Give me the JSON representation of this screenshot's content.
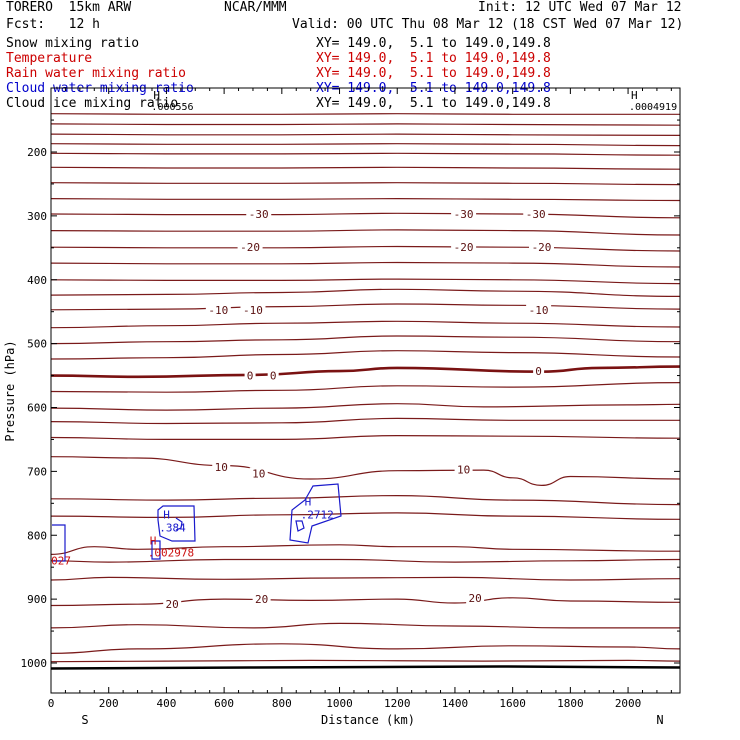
{
  "header": {
    "model": "TORERO  15km ARW",
    "org": "NCAR/MMM",
    "init": "Init: 12 UTC Wed 07 Mar 12",
    "fcst": "Fcst:   12 h",
    "valid": "Valid: 00 UTC Thu 08 Mar 12 (18 CST Wed 07 Mar 12)"
  },
  "fields": [
    {
      "name": "Snow mixing ratio",
      "xy": "XY= 149.0,  5.1 to 149.0,149.8",
      "color": "#000000"
    },
    {
      "name": "Temperature",
      "xy": "XY= 149.0,  5.1 to 149.0,149.8",
      "color": "#cc0000"
    },
    {
      "name": "Rain water mixing ratio",
      "xy": "XY= 149.0,  5.1 to 149.0,149.8",
      "color": "#cc0000"
    },
    {
      "name": "Cloud water mixing ratio",
      "xy": "XY= 149.0,  5.1 to 149.0,149.8",
      "color": "#0000cc"
    },
    {
      "name": "Cloud ice mixing ratio",
      "xy": "XY= 149.0,  5.1 to 149.0,149.8",
      "color": "#000000"
    }
  ],
  "colors": {
    "temperature": "#7a1a1a",
    "freezing": "#7a1212",
    "cloud_water": "#1a1acc",
    "rain": "#cc1111",
    "ground": "#000000"
  },
  "chart_data": {
    "type": "line",
    "xlabel": "Distance (km)",
    "ylabel": "Pressure (hPa)",
    "xlim": [
      0,
      2180
    ],
    "ylim": [
      1050,
      130
    ],
    "x_ticks": [
      0,
      200,
      400,
      600,
      800,
      1000,
      1200,
      1400,
      1600,
      1800,
      2000
    ],
    "y_ticks": [
      200,
      300,
      400,
      500,
      600,
      700,
      800,
      900,
      1000
    ],
    "x_end_labels": {
      "left": "S",
      "right": "N"
    },
    "isotherms": [
      {
        "p": [
          [
            0,
            140
          ],
          [
            400,
            141
          ],
          [
            800,
            141
          ],
          [
            1200,
            140
          ],
          [
            1600,
            141
          ],
          [
            2180,
            141
          ]
        ]
      },
      {
        "p": [
          [
            0,
            156
          ],
          [
            400,
            157
          ],
          [
            800,
            157
          ],
          [
            1200,
            156
          ],
          [
            1600,
            157
          ],
          [
            2180,
            158
          ]
        ]
      },
      {
        "p": [
          [
            0,
            172
          ],
          [
            400,
            173
          ],
          [
            800,
            173
          ],
          [
            1200,
            172
          ],
          [
            1600,
            173
          ],
          [
            2180,
            174
          ]
        ]
      },
      {
        "p": [
          [
            0,
            187
          ],
          [
            400,
            188
          ],
          [
            800,
            188
          ],
          [
            1200,
            187
          ],
          [
            1600,
            188
          ],
          [
            2180,
            190
          ]
        ]
      },
      {
        "p": [
          [
            0,
            202
          ],
          [
            400,
            203
          ],
          [
            800,
            203
          ],
          [
            1200,
            202
          ],
          [
            1600,
            203
          ],
          [
            2180,
            205
          ]
        ]
      },
      {
        "p": [
          [
            0,
            224
          ],
          [
            400,
            225
          ],
          [
            800,
            225
          ],
          [
            1200,
            224
          ],
          [
            1600,
            225
          ],
          [
            2180,
            227
          ]
        ]
      },
      {
        "p": [
          [
            0,
            248
          ],
          [
            400,
            249
          ],
          [
            800,
            249
          ],
          [
            1200,
            248
          ],
          [
            1600,
            249
          ],
          [
            2180,
            251
          ]
        ]
      },
      {
        "p": [
          [
            0,
            273
          ],
          [
            400,
            274
          ],
          [
            800,
            274
          ],
          [
            1200,
            273
          ],
          [
            1600,
            274
          ],
          [
            2180,
            276
          ]
        ]
      },
      {
        "p": [
          [
            0,
            297
          ],
          [
            400,
            298
          ],
          [
            800,
            298
          ],
          [
            1200,
            296
          ],
          [
            1600,
            297
          ],
          [
            2180,
            303
          ]
        ],
        "label": "-30"
      },
      {
        "p": [
          [
            0,
            323
          ],
          [
            400,
            324
          ],
          [
            800,
            324
          ],
          [
            1200,
            322
          ],
          [
            1600,
            323
          ],
          [
            2180,
            330
          ]
        ]
      },
      {
        "p": [
          [
            0,
            349
          ],
          [
            400,
            350
          ],
          [
            800,
            350
          ],
          [
            1200,
            348
          ],
          [
            1600,
            349
          ],
          [
            2180,
            355
          ]
        ],
        "label": "-20"
      },
      {
        "p": [
          [
            0,
            374
          ],
          [
            400,
            375
          ],
          [
            800,
            375
          ],
          [
            1200,
            373
          ],
          [
            1600,
            374
          ],
          [
            2180,
            380
          ]
        ]
      },
      {
        "p": [
          [
            0,
            400
          ],
          [
            400,
            401
          ],
          [
            800,
            401
          ],
          [
            1200,
            399
          ],
          [
            1600,
            400
          ],
          [
            2180,
            406
          ]
        ]
      },
      {
        "p": [
          [
            0,
            424
          ],
          [
            400,
            423
          ],
          [
            800,
            420
          ],
          [
            1200,
            415
          ],
          [
            1600,
            418
          ],
          [
            2180,
            426
          ]
        ]
      },
      {
        "p": [
          [
            0,
            447
          ],
          [
            400,
            446
          ],
          [
            800,
            442
          ],
          [
            1200,
            438
          ],
          [
            1600,
            440
          ],
          [
            2180,
            446
          ]
        ],
        "label": "-10"
      },
      {
        "p": [
          [
            0,
            475
          ],
          [
            400,
            472
          ],
          [
            800,
            468
          ],
          [
            1200,
            465
          ],
          [
            1600,
            468
          ],
          [
            2180,
            474
          ]
        ]
      },
      {
        "p": [
          [
            0,
            500
          ],
          [
            400,
            497
          ],
          [
            800,
            494
          ],
          [
            1200,
            488
          ],
          [
            1600,
            490
          ],
          [
            2180,
            497
          ]
        ]
      },
      {
        "p": [
          [
            0,
            524
          ],
          [
            400,
            522
          ],
          [
            800,
            517
          ],
          [
            1200,
            511
          ],
          [
            1600,
            514
          ],
          [
            2180,
            521
          ]
        ]
      },
      {
        "p": [
          [
            0,
            550
          ],
          [
            300,
            552
          ],
          [
            700,
            549
          ],
          [
            1000,
            543
          ],
          [
            1200,
            538
          ],
          [
            1700,
            544
          ],
          [
            1900,
            538
          ],
          [
            2180,
            536
          ]
        ],
        "label": "0",
        "bold": true
      },
      {
        "p": [
          [
            0,
            575
          ],
          [
            400,
            576
          ],
          [
            800,
            573
          ],
          [
            1200,
            566
          ],
          [
            1600,
            568
          ],
          [
            2180,
            561
          ]
        ]
      },
      {
        "p": [
          [
            0,
            601
          ],
          [
            400,
            604
          ],
          [
            800,
            601
          ],
          [
            1200,
            594
          ],
          [
            1500,
            599
          ],
          [
            2000,
            596
          ],
          [
            2180,
            595
          ]
        ]
      },
      {
        "p": [
          [
            0,
            622
          ],
          [
            400,
            625
          ],
          [
            800,
            624
          ],
          [
            1200,
            617
          ],
          [
            1600,
            620
          ],
          [
            2180,
            620
          ]
        ]
      },
      {
        "p": [
          [
            0,
            647
          ],
          [
            400,
            650
          ],
          [
            800,
            650
          ],
          [
            1200,
            644
          ],
          [
            1600,
            645
          ],
          [
            2180,
            648
          ]
        ]
      },
      {
        "p": [
          [
            0,
            677
          ],
          [
            300,
            679
          ],
          [
            600,
            691
          ],
          [
            900,
            712
          ],
          [
            1200,
            699
          ],
          [
            1500,
            698
          ],
          [
            1600,
            710
          ],
          [
            1700,
            722
          ],
          [
            1800,
            708
          ],
          [
            2180,
            712
          ]
        ],
        "label": "10"
      },
      {
        "p": [
          [
            0,
            743
          ],
          [
            400,
            745
          ],
          [
            800,
            742
          ],
          [
            1200,
            738
          ],
          [
            1600,
            745
          ],
          [
            2180,
            752
          ]
        ]
      },
      {
        "p": [
          [
            0,
            770
          ],
          [
            400,
            772
          ],
          [
            800,
            768
          ],
          [
            1200,
            765
          ],
          [
            1600,
            770
          ],
          [
            2180,
            775
          ]
        ]
      },
      {
        "p": [
          [
            0,
            830
          ],
          [
            150,
            818
          ],
          [
            300,
            822
          ],
          [
            600,
            818
          ],
          [
            1000,
            815
          ],
          [
            1200,
            818
          ],
          [
            1400,
            818
          ],
          [
            1600,
            822
          ],
          [
            2180,
            825
          ]
        ]
      },
      {
        "p": [
          [
            0,
            840
          ],
          [
            200,
            842
          ],
          [
            600,
            838
          ],
          [
            1000,
            838
          ],
          [
            1400,
            842
          ],
          [
            1800,
            840
          ],
          [
            2180,
            838
          ]
        ]
      },
      {
        "p": [
          [
            0,
            870
          ],
          [
            200,
            866
          ],
          [
            600,
            869
          ],
          [
            1000,
            867
          ],
          [
            1400,
            866
          ],
          [
            1800,
            870
          ],
          [
            2180,
            868
          ]
        ]
      },
      {
        "p": [
          [
            0,
            910
          ],
          [
            300,
            908
          ],
          [
            600,
            900
          ],
          [
            900,
            902
          ],
          [
            1200,
            900
          ],
          [
            1400,
            906
          ],
          [
            1600,
            898
          ],
          [
            1800,
            903
          ],
          [
            2180,
            905
          ]
        ],
        "label": "20"
      },
      {
        "p": [
          [
            0,
            945
          ],
          [
            300,
            940
          ],
          [
            700,
            945
          ],
          [
            1000,
            938
          ],
          [
            1400,
            942
          ],
          [
            1800,
            945
          ],
          [
            2180,
            945
          ]
        ]
      },
      {
        "p": [
          [
            0,
            985
          ],
          [
            300,
            978
          ],
          [
            800,
            970
          ],
          [
            1200,
            978
          ],
          [
            1600,
            973
          ],
          [
            2000,
            975
          ],
          [
            2180,
            978
          ]
        ]
      },
      {
        "p": [
          [
            0,
            998
          ],
          [
            400,
            997
          ],
          [
            900,
            996
          ],
          [
            1500,
            997
          ],
          [
            2000,
            996
          ],
          [
            2180,
            997
          ]
        ]
      }
    ],
    "contour_labels": [
      {
        "x": 720,
        "p": 297,
        "text": "-30"
      },
      {
        "x": 1430,
        "p": 297,
        "text": "-30"
      },
      {
        "x": 1680,
        "p": 297,
        "text": "-30"
      },
      {
        "x": 690,
        "p": 349,
        "text": "-20"
      },
      {
        "x": 1430,
        "p": 349,
        "text": "-20"
      },
      {
        "x": 1700,
        "p": 349,
        "text": "-20"
      },
      {
        "x": 580,
        "p": 447,
        "text": "-10"
      },
      {
        "x": 700,
        "p": 447,
        "text": "-10"
      },
      {
        "x": 1690,
        "p": 447,
        "text": "-10"
      },
      {
        "x": 690,
        "p": 550,
        "text": "0"
      },
      {
        "x": 770,
        "p": 550,
        "text": "0"
      },
      {
        "x": 1690,
        "p": 543,
        "text": "0"
      },
      {
        "x": 590,
        "p": 693,
        "text": "10"
      },
      {
        "x": 720,
        "p": 703,
        "text": "10"
      },
      {
        "x": 1430,
        "p": 697,
        "text": "10"
      },
      {
        "x": 420,
        "p": 908,
        "text": "20"
      },
      {
        "x": 730,
        "p": 900,
        "text": "20"
      },
      {
        "x": 1470,
        "p": 898,
        "text": "20"
      }
    ],
    "cloud_water_max": [
      {
        "x": 410,
        "p": 786,
        "h": "H",
        "value": ".384"
      },
      {
        "x": 900,
        "p": 766,
        "h": "H",
        "value": ".2712"
      }
    ],
    "rain_max": [
      {
        "x": 370,
        "p": 818,
        "h": "H",
        "value": ".002978"
      },
      {
        "x": 35,
        "p": 830,
        "value": "027"
      }
    ],
    "top_max": [
      {
        "x": 355,
        "p": 136,
        "h": "H",
        "value": ".000556"
      },
      {
        "x": 2010,
        "p": 136,
        "h": "H",
        "value": ".0004919"
      }
    ],
    "ground_p": 1007
  }
}
